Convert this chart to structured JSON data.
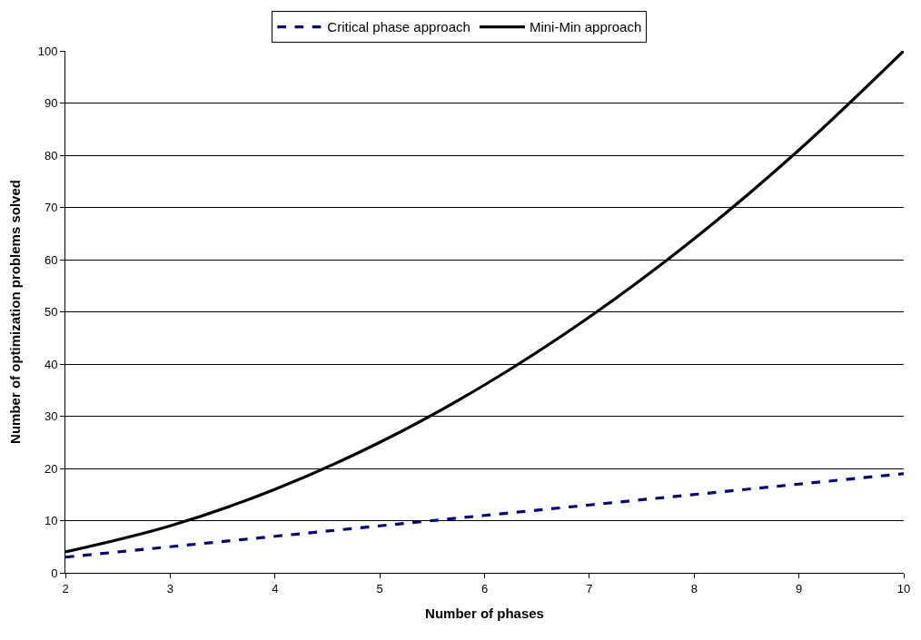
{
  "chart_data": {
    "type": "line",
    "xlabel": "Number of phases",
    "ylabel": "Number of optimization problems solved",
    "x": [
      2,
      3,
      4,
      5,
      6,
      7,
      8,
      9,
      10
    ],
    "series": [
      {
        "name": "Critical phase approach",
        "color": "#000080",
        "line_style": "dashed",
        "values": [
          3,
          5,
          7,
          9,
          11,
          13,
          15,
          17,
          19
        ]
      },
      {
        "name": "Mini-Min approach",
        "color": "#000000",
        "line_style": "solid",
        "values": [
          4,
          9,
          16,
          25,
          36,
          49,
          64,
          81,
          100
        ]
      }
    ],
    "xlim": [
      2,
      10
    ],
    "xticks": [
      2,
      3,
      4,
      5,
      6,
      7,
      8,
      9,
      10
    ],
    "ylim": [
      0,
      100
    ],
    "yticks": [
      0,
      10,
      20,
      30,
      40,
      50,
      60,
      70,
      80,
      90,
      100
    ],
    "grid": "y",
    "legend": "top",
    "marker": "none"
  }
}
